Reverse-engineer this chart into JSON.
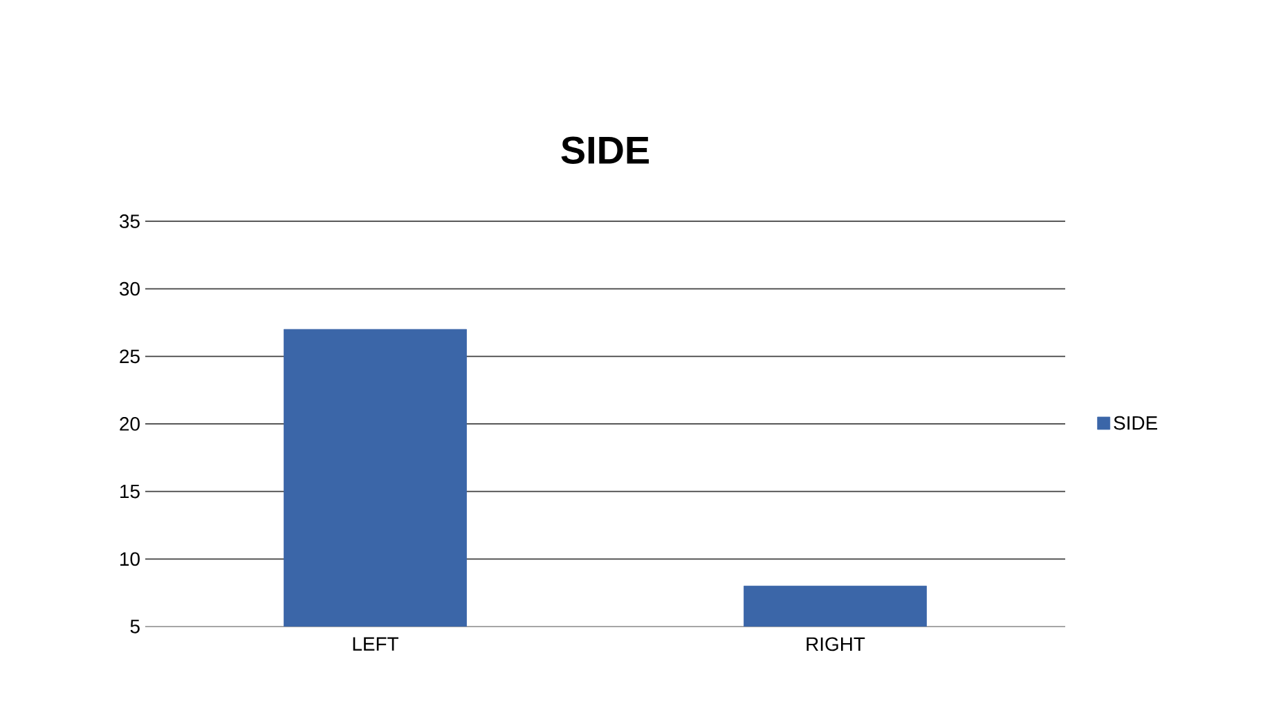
{
  "chart_data": {
    "type": "bar",
    "title": "SIDE",
    "categories": [
      "LEFT",
      "RIGHT"
    ],
    "series": [
      {
        "name": "SIDE",
        "color": "#3b66a8",
        "values": [
          27,
          8
        ]
      }
    ],
    "ylim": [
      5,
      35
    ],
    "yticks": [
      5,
      10,
      15,
      20,
      25,
      30,
      35
    ],
    "grid": "y",
    "legend": "right"
  }
}
